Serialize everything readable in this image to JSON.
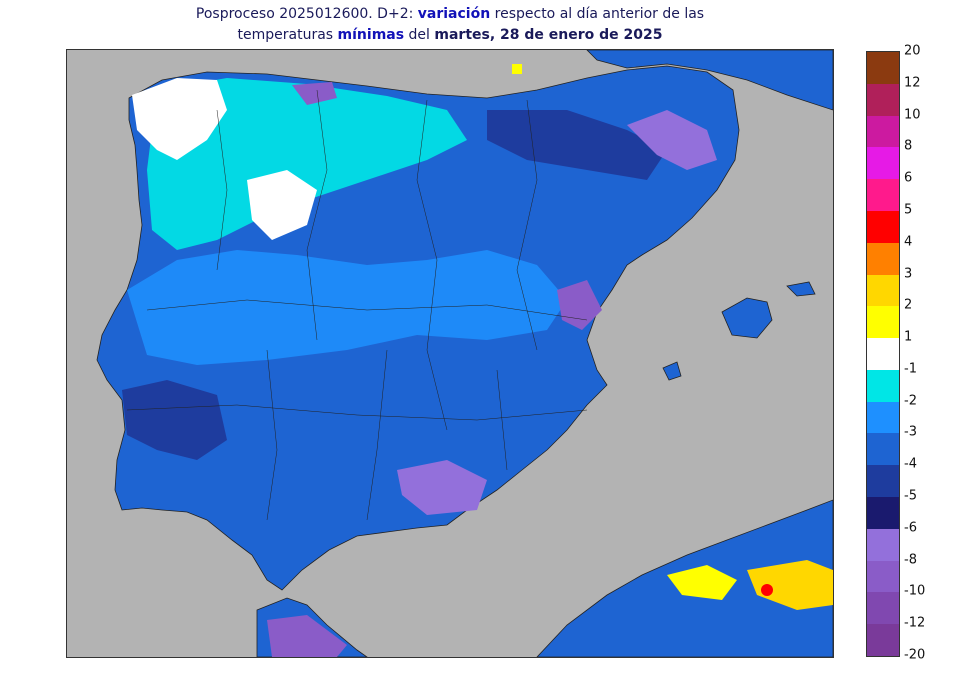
{
  "title": {
    "line1_a": "Posproceso 2025012600. D+2: ",
    "line1_b": "variación",
    "line1_c": " respecto al día anterior de las",
    "line2_a": "temperaturas ",
    "line2_b": "mínimas",
    "line2_c": " del ",
    "line2_d": "martes, 28 de enero de 2025"
  },
  "legend": {
    "levels": [
      {
        "label": "20",
        "color": "#8b3a10"
      },
      {
        "label": "12",
        "color": "#b0205a"
      },
      {
        "label": "10",
        "color": "#cc1aa0"
      },
      {
        "label": "8",
        "color": "#e61ae6"
      },
      {
        "label": "6",
        "color": "#ff1a8c"
      },
      {
        "label": "5",
        "color": "#ff0000"
      },
      {
        "label": "4",
        "color": "#ff8000"
      },
      {
        "label": "3",
        "color": "#ffd700"
      },
      {
        "label": "2",
        "color": "#ffff00"
      },
      {
        "label": "1",
        "color": "#ffffff"
      },
      {
        "label": "-1",
        "color": "#00e6e6"
      },
      {
        "label": "-2",
        "color": "#1e90ff"
      },
      {
        "label": "-3",
        "color": "#1e64d2"
      },
      {
        "label": "-4",
        "color": "#1e3c9e"
      },
      {
        "label": "-5",
        "color": "#1a1a6e"
      },
      {
        "label": "-6",
        "color": "#9370db"
      },
      {
        "label": "-8",
        "color": "#8a5cc8"
      },
      {
        "label": "-10",
        "color": "#8048b0"
      },
      {
        "label": "-12",
        "color": "#7a3a9a"
      },
      {
        "label": "-20",
        "color": ""
      }
    ]
  },
  "map": {
    "sea_color": "#b3b3b3",
    "land_color": "#1e64d2"
  }
}
